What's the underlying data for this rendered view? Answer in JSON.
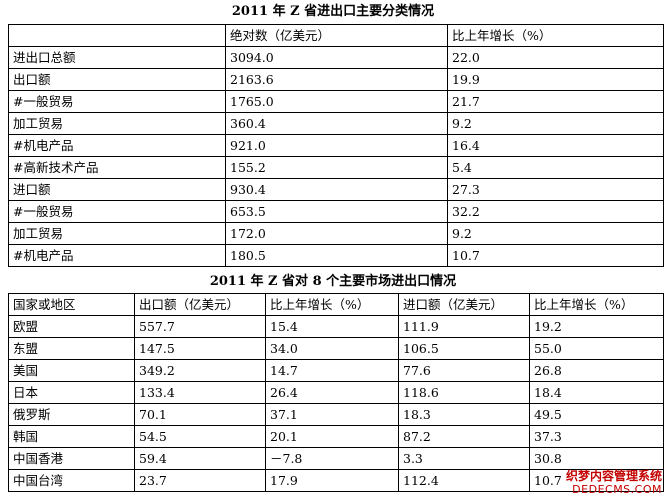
{
  "table1": {
    "title": "2011 年 Z 省进出口主要分类情况",
    "headers": [
      "",
      "绝对数（亿美元）",
      "比上年增长（%）"
    ],
    "rows": [
      [
        "进出口总额",
        "3094.0",
        "22.0"
      ],
      [
        "出口额",
        "2163.6",
        "19.9"
      ],
      [
        "#一般贸易",
        "1765.0",
        "21.7"
      ],
      [
        "加工贸易",
        "360.4",
        "9.2"
      ],
      [
        "#机电产品",
        "921.0",
        "16.4"
      ],
      [
        "#高新技术产品",
        "155.2",
        "5.4"
      ],
      [
        "进口额",
        "930.4",
        "27.3"
      ],
      [
        "#一般贸易",
        "653.5",
        "32.2"
      ],
      [
        "加工贸易",
        "172.0",
        "9.2"
      ],
      [
        "#机电产品",
        "180.5",
        "10.7"
      ]
    ]
  },
  "table2": {
    "title": "2011 年 Z 省对 8 个主要市场进出口情况",
    "headers": [
      "国家或地区",
      "出口额（亿美元）",
      "比上年增长（%）",
      "进口额（亿美元）",
      "比上年增长（%）"
    ],
    "rows": [
      [
        "欧盟",
        "557.7",
        "15.4",
        "111.9",
        "19.2"
      ],
      [
        "东盟",
        "147.5",
        "34.0",
        "106.5",
        "55.0"
      ],
      [
        "美国",
        "349.2",
        "14.7",
        "77.6",
        "26.8"
      ],
      [
        "日本",
        "133.4",
        "26.4",
        "118.6",
        "18.4"
      ],
      [
        "俄罗斯",
        "70.1",
        "37.1",
        "18.3",
        "49.5"
      ],
      [
        "韩国",
        "54.5",
        "20.1",
        "87.2",
        "37.3"
      ],
      [
        "中国香港",
        "59.4",
        "－7.8",
        "3.3",
        "30.8"
      ],
      [
        "中国台湾",
        "23.7",
        "17.9",
        "112.4",
        "10.7"
      ]
    ]
  },
  "watermark": {
    "line1": "织梦内容管理系统",
    "line2": "DEDECMS.COM"
  }
}
